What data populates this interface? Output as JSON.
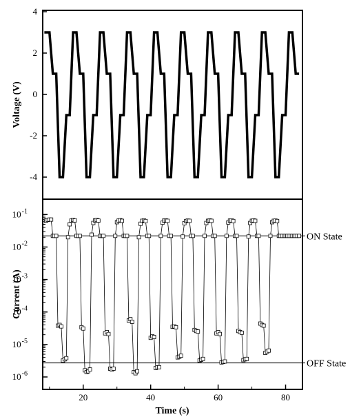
{
  "chart_data": [
    {
      "type": "line",
      "panel": "top",
      "ylabel": "Voltage (V)",
      "xlabel": "",
      "xlim": [
        8,
        85
      ],
      "ylim": [
        -4,
        4
      ],
      "yticks": [
        -4,
        -2,
        0,
        2,
        4
      ],
      "series": [
        {
          "x": [
            8.5,
            10,
            11,
            12,
            13,
            14,
            15,
            16,
            17,
            18,
            19,
            20,
            21,
            22,
            23,
            24,
            25,
            26,
            27,
            28,
            29,
            30,
            31,
            32,
            33,
            34,
            35,
            36,
            37,
            38,
            39,
            40,
            41,
            42,
            43,
            44,
            45,
            46,
            47,
            48,
            49,
            50,
            51,
            52,
            53,
            54,
            55,
            56,
            57,
            58,
            59,
            60,
            61,
            62,
            63,
            64,
            65,
            66,
            67,
            68,
            69,
            70,
            71,
            72,
            73,
            74,
            75,
            76,
            77,
            78,
            79,
            80,
            81,
            82,
            83,
            84
          ],
          "y": [
            3,
            3,
            1,
            1,
            -4,
            -4,
            -1,
            -1,
            3,
            3,
            1,
            1,
            -4,
            -4,
            -1,
            -1,
            3,
            3,
            1,
            1,
            -4,
            -4,
            -1,
            -1,
            3,
            3,
            1,
            1,
            -4,
            -4,
            -1,
            -1,
            3,
            3,
            1,
            1,
            -4,
            -4,
            -1,
            -1,
            3,
            3,
            1,
            1,
            -4,
            -4,
            -1,
            -1,
            3,
            3,
            1,
            1,
            -4,
            -4,
            -1,
            -1,
            3,
            3,
            1,
            1,
            -4,
            -4,
            -1,
            -1,
            3,
            3,
            1,
            1,
            -4,
            -4,
            -1,
            -1,
            3,
            3,
            1,
            1
          ]
        }
      ]
    },
    {
      "type": "line",
      "panel": "bottom",
      "yscale": "log",
      "ylabel": "Current (A)",
      "xlabel": "Time (s)",
      "xlim": [
        8,
        85
      ],
      "ylim": [
        1e-06,
        0.15
      ],
      "xticks": [
        20,
        40,
        60,
        80
      ],
      "ytick_labels": [
        "10-6",
        "10-5",
        "10-4",
        "10-3",
        "10-2",
        "10-1"
      ],
      "hlines": [
        {
          "value": 0.022,
          "label": "ON State"
        },
        {
          "value": 2.7e-06,
          "label": "OFF State"
        }
      ],
      "series": [
        {
          "marker": "open-square",
          "x": [
            9,
            9.5,
            10,
            10.5,
            11,
            11.5,
            12,
            12.5,
            13,
            13.5,
            14,
            14.5,
            15,
            15.5,
            16,
            16.5,
            17,
            17.5,
            18,
            18.5,
            19,
            19.5,
            20,
            20.5,
            21,
            21.5,
            22,
            22.5,
            23,
            23.5,
            24,
            24.5,
            25,
            25.5,
            26,
            26.5,
            27,
            27.5,
            28,
            28.5,
            29,
            29.5,
            30,
            30.5,
            31,
            31.5,
            32,
            32.5,
            33,
            33.5,
            34,
            34.5,
            35,
            35.5,
            36,
            36.5,
            37,
            37.5,
            38,
            38.5,
            39,
            39.5,
            40,
            40.5,
            41,
            41.5,
            42,
            42.5,
            43,
            43.5,
            44,
            44.5,
            45,
            45.5,
            46,
            46.5,
            47,
            47.5,
            48,
            48.5,
            49,
            49.5,
            50,
            50.5,
            51,
            51.5,
            52,
            52.5,
            53,
            53.5,
            54,
            54.5,
            55,
            55.5,
            56,
            56.5,
            57,
            57.5,
            58,
            58.5,
            59,
            59.5,
            60,
            60.5,
            61,
            61.5,
            62,
            62.5,
            63,
            63.5,
            64,
            64.5,
            65,
            65.5,
            66,
            66.5,
            67,
            67.5,
            68,
            68.5,
            69,
            69.5,
            70,
            70.5,
            71,
            71.5,
            72,
            72.5,
            73,
            73.5,
            74,
            74.5,
            75,
            75.5,
            76,
            76.5,
            77,
            77.5,
            78,
            78.5,
            79,
            79.5,
            80,
            80.5,
            81,
            81.5,
            82,
            82.5,
            83,
            83.5,
            84
          ],
          "y": [
            0.065,
            0.068,
            0.07,
            0.07,
            0.022,
            0.022,
            0.022,
            3.8e-05,
            4e-05,
            3.6e-05,
            3.2e-06,
            3.5e-06,
            3.8e-06,
            0.02,
            0.05,
            0.065,
            0.068,
            0.066,
            0.022,
            0.022,
            0.022,
            3.4e-05,
            3.1e-05,
            1.6e-06,
            1.4e-06,
            1.5e-06,
            1.7e-06,
            0.024,
            0.055,
            0.066,
            0.068,
            0.065,
            0.022,
            0.022,
            0.022,
            2.2e-05,
            2.4e-05,
            2.1e-05,
            1.8e-06,
            1.7e-06,
            1.8e-06,
            0.022,
            0.058,
            0.065,
            0.067,
            0.064,
            0.022,
            0.022,
            0.022,
            5.5e-05,
            6e-05,
            5e-05,
            1.4e-06,
            1.3e-06,
            1.5e-06,
            0.02,
            0.052,
            0.064,
            0.066,
            0.063,
            0.022,
            0.022,
            1.6e-05,
            1.8e-05,
            1.7e-05,
            1.9e-06,
            2e-06,
            2e-06,
            0.022,
            0.056,
            0.065,
            0.066,
            0.064,
            0.022,
            0.022,
            3.5e-05,
            3.6e-05,
            3.4e-05,
            4e-06,
            4.2e-06,
            4.5e-06,
            0.021,
            0.054,
            0.063,
            0.065,
            0.064,
            0.022,
            0.022,
            2.8e-05,
            2.6e-05,
            2.5e-05,
            3.2e-06,
            3.4e-06,
            3.6e-06,
            0.022,
            0.055,
            0.064,
            0.066,
            0.064,
            0.022,
            0.022,
            2.2e-05,
            2.4e-05,
            2.1e-05,
            2.8e-06,
            2.9e-06,
            3e-06,
            0.022,
            0.057,
            0.065,
            0.066,
            0.063,
            0.022,
            0.022,
            2.6e-05,
            2.4e-05,
            2.3e-05,
            3.3e-06,
            3.5e-06,
            3.6e-06,
            0.021,
            0.055,
            0.064,
            0.066,
            0.064,
            0.022,
            0.022,
            4.4e-05,
            4e-05,
            3.8e-05,
            5.5e-06,
            6e-06,
            6.5e-06,
            0.022,
            0.058,
            0.064,
            0.065,
            0.063,
            0.022,
            0.022,
            0.022,
            0.022,
            0.022,
            0.022,
            0.022,
            0.022,
            0.022,
            0.022,
            0.022,
            0.022,
            0.022
          ]
        }
      ]
    }
  ]
}
